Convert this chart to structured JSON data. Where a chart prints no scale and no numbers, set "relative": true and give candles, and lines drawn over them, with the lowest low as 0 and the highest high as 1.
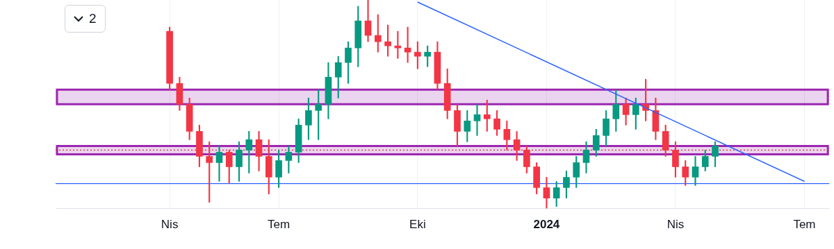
{
  "chart_data": {
    "type": "candlestick",
    "relative": true,
    "grid": "x",
    "categories": [
      null,
      null,
      null,
      null,
      null,
      null,
      null,
      null,
      null,
      null,
      null,
      "Nis",
      null,
      null,
      null,
      null,
      null,
      null,
      null,
      null,
      null,
      null,
      "Tem",
      null,
      null,
      null,
      null,
      null,
      null,
      null,
      null,
      null,
      null,
      null,
      null,
      null,
      "Eki",
      null,
      null,
      null,
      null,
      null,
      null,
      null,
      null,
      null,
      null,
      null,
      null,
      "2024",
      null,
      null,
      null,
      null,
      null,
      null,
      null,
      null,
      null,
      null,
      null,
      null,
      "Nis",
      null,
      null,
      null,
      null,
      null,
      null,
      null,
      null,
      null,
      null,
      null,
      null,
      "Tem",
      null,
      null
    ],
    "ohlc": [
      null,
      null,
      null,
      null,
      null,
      null,
      null,
      null,
      null,
      null,
      null,
      [
        0.85,
        0.87,
        0.57,
        0.6
      ],
      [
        0.6,
        0.63,
        0.47,
        0.5
      ],
      [
        0.5,
        0.53,
        0.33,
        0.37
      ],
      [
        0.37,
        0.4,
        0.2,
        0.25
      ],
      [
        0.25,
        0.32,
        0.03,
        0.22
      ],
      [
        0.22,
        0.3,
        0.13,
        0.27
      ],
      [
        0.27,
        0.28,
        0.12,
        0.2
      ],
      [
        0.2,
        0.32,
        0.13,
        0.28
      ],
      [
        0.28,
        0.37,
        0.17,
        0.33
      ],
      [
        0.33,
        0.37,
        0.18,
        0.25
      ],
      [
        0.25,
        0.33,
        0.07,
        0.15
      ],
      [
        0.15,
        0.28,
        0.1,
        0.23
      ],
      [
        0.23,
        0.3,
        0.17,
        0.27
      ],
      [
        0.27,
        0.43,
        0.22,
        0.4
      ],
      [
        0.4,
        0.53,
        0.33,
        0.47
      ],
      [
        0.47,
        0.57,
        0.33,
        0.5
      ],
      [
        0.5,
        0.7,
        0.43,
        0.63
      ],
      [
        0.63,
        0.73,
        0.53,
        0.7
      ],
      [
        0.7,
        0.8,
        0.6,
        0.77
      ],
      [
        0.77,
        0.97,
        0.68,
        0.9
      ],
      [
        0.9,
        1,
        0.8,
        0.83
      ],
      [
        0.83,
        0.93,
        0.75,
        0.8
      ],
      [
        0.8,
        0.88,
        0.73,
        0.78
      ],
      [
        0.78,
        0.85,
        0.72,
        0.77
      ],
      [
        0.77,
        0.87,
        0.7,
        0.75
      ],
      [
        0.75,
        0.8,
        0.67,
        0.73
      ],
      [
        0.73,
        0.78,
        0.68,
        0.75
      ],
      [
        0.75,
        0.8,
        0.57,
        0.6
      ],
      [
        0.6,
        0.67,
        0.43,
        0.47
      ],
      [
        0.47,
        0.5,
        0.3,
        0.37
      ],
      [
        0.37,
        0.47,
        0.32,
        0.42
      ],
      [
        0.42,
        0.5,
        0.35,
        0.45
      ],
      [
        0.45,
        0.52,
        0.37,
        0.43
      ],
      [
        0.43,
        0.47,
        0.35,
        0.38
      ],
      [
        0.38,
        0.42,
        0.28,
        0.33
      ],
      [
        0.33,
        0.37,
        0.23,
        0.28
      ],
      [
        0.28,
        0.3,
        0.17,
        0.2
      ],
      [
        0.2,
        0.22,
        0.07,
        0.1
      ],
      [
        0.1,
        0.15,
        0,
        0.05
      ],
      [
        0.05,
        0.13,
        0.01,
        0.1
      ],
      [
        0.1,
        0.18,
        0.05,
        0.15
      ],
      [
        0.15,
        0.25,
        0.1,
        0.22
      ],
      [
        0.22,
        0.32,
        0.17,
        0.28
      ],
      [
        0.28,
        0.38,
        0.25,
        0.35
      ],
      [
        0.35,
        0.47,
        0.3,
        0.43
      ],
      [
        0.43,
        0.57,
        0.37,
        0.5
      ],
      [
        0.5,
        0.53,
        0.4,
        0.45
      ],
      [
        0.45,
        0.53,
        0.38,
        0.5
      ],
      [
        0.5,
        0.62,
        0.42,
        0.47
      ],
      [
        0.47,
        0.53,
        0.33,
        0.37
      ],
      [
        0.37,
        0.4,
        0.25,
        0.28
      ],
      [
        0.28,
        0.32,
        0.15,
        0.2
      ],
      [
        0.2,
        0.23,
        0.11,
        0.15
      ],
      [
        0.15,
        0.25,
        0.11,
        0.2
      ],
      [
        0.2,
        0.28,
        0.18,
        0.25
      ],
      [
        0.25,
        0.32,
        0.2,
        0.3
      ],
      null,
      null,
      null,
      null,
      null,
      null,
      null,
      null,
      null,
      null,
      null
    ],
    "colors": [
      null,
      null,
      null,
      null,
      null,
      null,
      null,
      null,
      null,
      null,
      null,
      "#f23645",
      "#f23645",
      "#f23645",
      "#f23645",
      "#f23645",
      "#089981",
      "#f23645",
      "#089981",
      "#089981",
      "#f23645",
      "#f23645",
      "#089981",
      "#089981",
      "#089981",
      "#089981",
      "#089981",
      "#089981",
      "#089981",
      "#089981",
      "#089981",
      "#f23645",
      "#f23645",
      "#f23645",
      "#f23645",
      "#f23645",
      "#f23645",
      "#089981",
      "#f23645",
      "#f23645",
      "#f23645",
      "#089981",
      "#089981",
      "#f23645",
      "#f23645",
      "#f23645",
      "#f23645",
      "#f23645",
      "#f23645",
      "#f23645",
      "#089981",
      "#089981",
      "#089981",
      "#089981",
      "#089981",
      "#089981",
      "#089981",
      "#f23645",
      "#089981",
      "#f23645",
      "#f23645",
      "#f23645",
      "#f23645",
      "#f23645",
      "#089981",
      "#089981",
      "#089981",
      null,
      null,
      null,
      null,
      null,
      null,
      null,
      null,
      null,
      null,
      null
    ],
    "series": [
      {
        "type": "line",
        "color": "#2962ff",
        "values": [
          null,
          null,
          null,
          null,
          null,
          null,
          null,
          null,
          null,
          null,
          null,
          null,
          null,
          null,
          null,
          null,
          null,
          null,
          null,
          null,
          null,
          null,
          null,
          null,
          null,
          null,
          null,
          null,
          null,
          null,
          null,
          null,
          null,
          null,
          null,
          null,
          0.99,
          null,
          null,
          null,
          null,
          null,
          null,
          null,
          null,
          null,
          null,
          null,
          null,
          null,
          null,
          null,
          null,
          null,
          null,
          null,
          null,
          null,
          null,
          null,
          null,
          null,
          null,
          null,
          null,
          null,
          null,
          null,
          null,
          null,
          null,
          null,
          null,
          null,
          null,
          0.13,
          null,
          null
        ]
      }
    ],
    "ref_lines": [
      {
        "axis": "y",
        "value": 0.12,
        "color": "#2962ff",
        "line_style": "solid"
      },
      {
        "axis": "y",
        "value": 0.28,
        "color": "#d32f2f",
        "line_style": "dotted"
      }
    ],
    "bands": [
      {
        "axis": "y",
        "from": 0.26,
        "to": 0.3,
        "color": "#9c27b0"
      },
      {
        "axis": "y",
        "from": 0.5,
        "to": 0.57,
        "color": "#9c27b0"
      }
    ],
    "annotations": [
      "2"
    ]
  }
}
